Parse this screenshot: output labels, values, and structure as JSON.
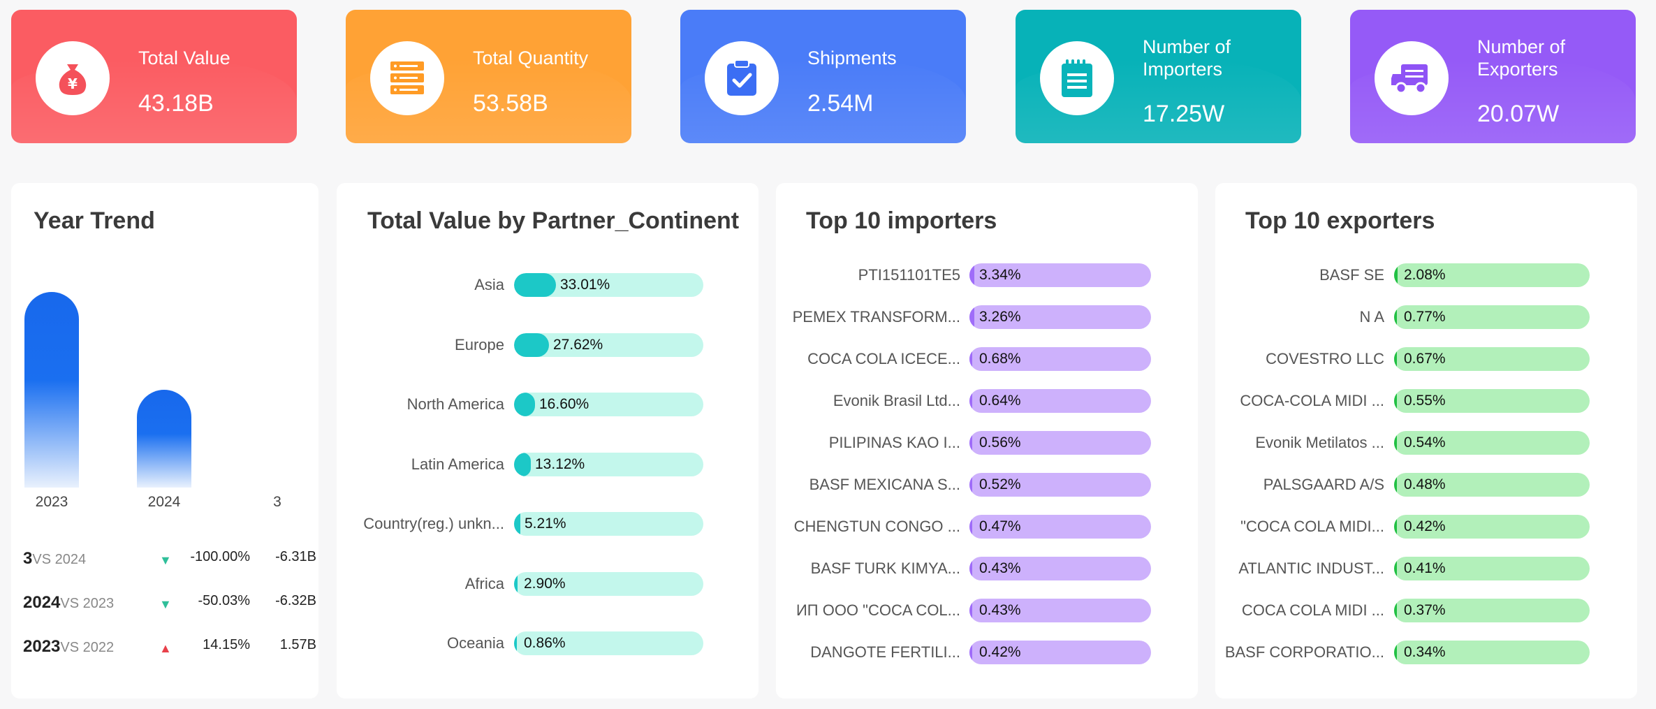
{
  "kpis": [
    {
      "label": "Total Value",
      "value": "43.18B",
      "icon": "money-bag-icon",
      "color": "#fb5c62"
    },
    {
      "label": "Total Quantity",
      "value": "53.58B",
      "icon": "stack-list-icon",
      "color": "#ffa235"
    },
    {
      "label": "Shipments",
      "value": "2.54M",
      "icon": "clipboard-check-icon",
      "color": "#4a7cf8"
    },
    {
      "label": "Number of Importers",
      "value": "17.25W",
      "icon": "notepad-icon",
      "color": "#07b2b8"
    },
    {
      "label": "Number of Exporters",
      "value": "20.07W",
      "icon": "truck-icon",
      "color": "#955af7"
    }
  ],
  "year_trend": {
    "title": "Year Trend",
    "bars": [
      {
        "year": "2023",
        "level": 1.0
      },
      {
        "year": "2024",
        "level": 0.5
      },
      {
        "year": "3",
        "level": 0.0
      }
    ],
    "comparisons": [
      {
        "year": "3",
        "vs": "VS 2024",
        "direction": "down",
        "pct": "-100.00%",
        "abs": "-6.31B"
      },
      {
        "year": "2024",
        "vs": "VS 2023",
        "direction": "down",
        "pct": "-50.03%",
        "abs": "-6.32B"
      },
      {
        "year": "2023",
        "vs": "VS 2022",
        "direction": "up",
        "pct": "14.15%",
        "abs": "1.57B"
      }
    ]
  },
  "continent": {
    "title": "Total Value by Partner_Continent",
    "rows": [
      {
        "label": "Asia",
        "pct": "33.01%",
        "value": 33.01
      },
      {
        "label": "Europe",
        "pct": "27.62%",
        "value": 27.62
      },
      {
        "label": "North America",
        "pct": "16.60%",
        "value": 16.6
      },
      {
        "label": "Latin America",
        "pct": "13.12%",
        "value": 13.12
      },
      {
        "label": "Country(reg.) unkn...",
        "pct": "5.21%",
        "value": 5.21
      },
      {
        "label": "Africa",
        "pct": "2.90%",
        "value": 2.9
      },
      {
        "label": "Oceania",
        "pct": "0.86%",
        "value": 0.86
      }
    ]
  },
  "importers": {
    "title": "Top 10 importers",
    "rows": [
      {
        "label": "PTI151101TE5",
        "pct": "3.34%",
        "value": 3.34
      },
      {
        "label": "PEMEX TRANSFORM...",
        "pct": "3.26%",
        "value": 3.26
      },
      {
        "label": "COCA COLA ICECE...",
        "pct": "0.68%",
        "value": 0.68
      },
      {
        "label": "Evonik Brasil Ltd...",
        "pct": "0.64%",
        "value": 0.64
      },
      {
        "label": "PILIPINAS KAO I...",
        "pct": "0.56%",
        "value": 0.56
      },
      {
        "label": "BASF MEXICANA S...",
        "pct": "0.52%",
        "value": 0.52
      },
      {
        "label": "CHENGTUN CONGO ...",
        "pct": "0.47%",
        "value": 0.47
      },
      {
        "label": "BASF TURK KIMYA...",
        "pct": "0.43%",
        "value": 0.43
      },
      {
        "label": "ИП ООО \"COCA COL...",
        "pct": "0.43%",
        "value": 0.43
      },
      {
        "label": "DANGOTE FERTILI...",
        "pct": "0.42%",
        "value": 0.42
      }
    ]
  },
  "exporters": {
    "title": "Top 10 exporters",
    "rows": [
      {
        "label": "BASF SE",
        "pct": "2.08%",
        "value": 2.08
      },
      {
        "label": "N A",
        "pct": "0.77%",
        "value": 0.77
      },
      {
        "label": "COVESTRO LLC",
        "pct": "0.67%",
        "value": 0.67
      },
      {
        "label": "COCA-COLA MIDI ...",
        "pct": "0.55%",
        "value": 0.55
      },
      {
        "label": "Evonik Metilatos ...",
        "pct": "0.54%",
        "value": 0.54
      },
      {
        "label": "PALSGAARD A/S",
        "pct": "0.48%",
        "value": 0.48
      },
      {
        "label": "\"COCA COLA MIDI...",
        "pct": "0.42%",
        "value": 0.42
      },
      {
        "label": "ATLANTIC INDUST...",
        "pct": "0.41%",
        "value": 0.41
      },
      {
        "label": "COCA COLA MIDI ...",
        "pct": "0.37%",
        "value": 0.37
      },
      {
        "label": "BASF CORPORATIO...",
        "pct": "0.34%",
        "value": 0.34
      }
    ]
  }
}
